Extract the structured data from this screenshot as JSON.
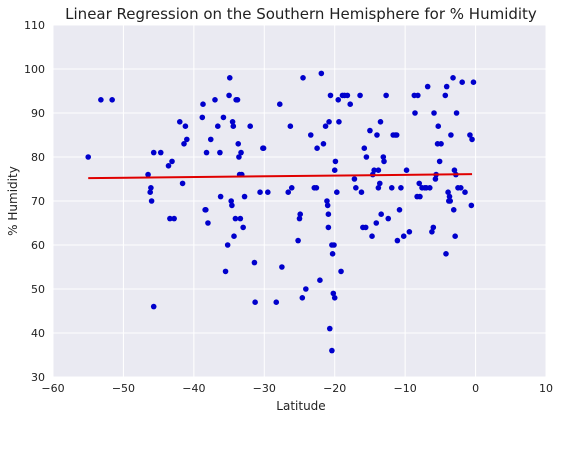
{
  "chart_data": {
    "type": "scatter",
    "title": "Linear Regression on the Southern Hemisphere for % Humidity",
    "xlabel": "Latitude",
    "ylabel": "% Humidity",
    "xlim": [
      -60,
      10
    ],
    "ylim": [
      30,
      110
    ],
    "xticks": [
      "−60",
      "−50",
      "−40",
      "−30",
      "−20",
      "−10",
      "0",
      "10"
    ],
    "yticks": [
      "30",
      "40",
      "50",
      "60",
      "70",
      "80",
      "90",
      "100",
      "110"
    ],
    "grid": true,
    "colors": {
      "background": "#eaeaf2",
      "grid": "#ffffff",
      "points": "#0000cc",
      "line": "#e00000"
    },
    "regression": {
      "x": [
        -55,
        -0.5
      ],
      "y": [
        75.2,
        76.1
      ]
    },
    "points": [
      [
        -55,
        80
      ],
      [
        -53.2,
        93
      ],
      [
        -51.6,
        93
      ],
      [
        -46.5,
        76
      ],
      [
        -46.2,
        72
      ],
      [
        -46.1,
        73
      ],
      [
        -46,
        70
      ],
      [
        -45.7,
        81
      ],
      [
        -45.7,
        46
      ],
      [
        -44.7,
        81
      ],
      [
        -43.6,
        78
      ],
      [
        -43.4,
        66
      ],
      [
        -43.1,
        79
      ],
      [
        -42.8,
        66
      ],
      [
        -42,
        88
      ],
      [
        -41.6,
        74
      ],
      [
        -41.4,
        83
      ],
      [
        -41.2,
        87
      ],
      [
        -41,
        84
      ],
      [
        -38.8,
        89
      ],
      [
        -38.7,
        92
      ],
      [
        -38.4,
        68
      ],
      [
        -38.3,
        68
      ],
      [
        -38.2,
        81
      ],
      [
        -38,
        65
      ],
      [
        -37.6,
        84
      ],
      [
        -37,
        93
      ],
      [
        -36.6,
        87
      ],
      [
        -36.3,
        81
      ],
      [
        -36.2,
        71
      ],
      [
        -35.8,
        89
      ],
      [
        -35.5,
        54
      ],
      [
        -35.2,
        60
      ],
      [
        -35,
        94
      ],
      [
        -34.9,
        98
      ],
      [
        -34.7,
        70
      ],
      [
        -34.6,
        69
      ],
      [
        -34.5,
        88
      ],
      [
        -34.4,
        87
      ],
      [
        -34.3,
        62
      ],
      [
        -34.1,
        66
      ],
      [
        -34,
        93
      ],
      [
        -33.8,
        93
      ],
      [
        -33.7,
        83
      ],
      [
        -33.6,
        80
      ],
      [
        -33.5,
        76
      ],
      [
        -33.4,
        66
      ],
      [
        -33.3,
        81
      ],
      [
        -33.2,
        76
      ],
      [
        -33,
        64
      ],
      [
        -32.8,
        71
      ],
      [
        -32,
        87
      ],
      [
        -31.4,
        56
      ],
      [
        -31.3,
        47
      ],
      [
        -30.6,
        72
      ],
      [
        -30.2,
        82
      ],
      [
        -30.1,
        82
      ],
      [
        -29.5,
        72
      ],
      [
        -28.3,
        47
      ],
      [
        -27.8,
        92
      ],
      [
        -27.5,
        55
      ],
      [
        -26.6,
        72
      ],
      [
        -26.3,
        87
      ],
      [
        -26.1,
        73
      ],
      [
        -25.2,
        61
      ],
      [
        -25,
        66
      ],
      [
        -24.9,
        67
      ],
      [
        -24.6,
        48
      ],
      [
        -24.5,
        98
      ],
      [
        -24.1,
        50
      ],
      [
        -23.4,
        85
      ],
      [
        -22.9,
        73
      ],
      [
        -22.6,
        73
      ],
      [
        -22.5,
        82
      ],
      [
        -22.1,
        52
      ],
      [
        -21.9,
        99
      ],
      [
        -21.6,
        83
      ],
      [
        -21.3,
        87
      ],
      [
        -21.1,
        70
      ],
      [
        -21,
        69
      ],
      [
        -20.9,
        67
      ],
      [
        -20.9,
        64
      ],
      [
        -20.8,
        88
      ],
      [
        -20.7,
        41
      ],
      [
        -20.6,
        94
      ],
      [
        -20.4,
        36
      ],
      [
        -20.4,
        60
      ],
      [
        -20.3,
        58
      ],
      [
        -20.2,
        49
      ],
      [
        -20.1,
        60
      ],
      [
        -20,
        48
      ],
      [
        -20,
        77
      ],
      [
        -19.9,
        79
      ],
      [
        -19.7,
        72
      ],
      [
        -19.5,
        93
      ],
      [
        -19.4,
        88
      ],
      [
        -19.1,
        54
      ],
      [
        -18.9,
        94
      ],
      [
        -18.6,
        94
      ],
      [
        -18.2,
        94
      ],
      [
        -17.8,
        92
      ],
      [
        -17.2,
        75
      ],
      [
        -17,
        73
      ],
      [
        -16.4,
        94
      ],
      [
        -16.2,
        72
      ],
      [
        -16,
        64
      ],
      [
        -15.8,
        82
      ],
      [
        -15.6,
        64
      ],
      [
        -15.5,
        80
      ],
      [
        -15,
        86
      ],
      [
        -14.7,
        62
      ],
      [
        -14.6,
        76
      ],
      [
        -14.4,
        77
      ],
      [
        -14.1,
        65
      ],
      [
        -14,
        85
      ],
      [
        -13.8,
        77
      ],
      [
        -13.8,
        73
      ],
      [
        -13.6,
        74
      ],
      [
        -13.5,
        88
      ],
      [
        -13.4,
        67
      ],
      [
        -13.1,
        80
      ],
      [
        -13,
        79
      ],
      [
        -12.7,
        94
      ],
      [
        -12.4,
        66
      ],
      [
        -11.9,
        73
      ],
      [
        -11.7,
        85
      ],
      [
        -11.4,
        85
      ],
      [
        -11.2,
        85
      ],
      [
        -11.1,
        61
      ],
      [
        -10.8,
        68
      ],
      [
        -10.6,
        73
      ],
      [
        -10.2,
        62
      ],
      [
        -9.8,
        77
      ],
      [
        -9.4,
        63
      ],
      [
        -8.7,
        94
      ],
      [
        -8.6,
        90
      ],
      [
        -8.3,
        71
      ],
      [
        -8.2,
        94
      ],
      [
        -8,
        74
      ],
      [
        -7.9,
        71
      ],
      [
        -7.6,
        73
      ],
      [
        -7.2,
        73
      ],
      [
        -7,
        73
      ],
      [
        -6.8,
        96
      ],
      [
        -6.5,
        73
      ],
      [
        -6.2,
        63
      ],
      [
        -6,
        64
      ],
      [
        -5.9,
        90
      ],
      [
        -5.7,
        75
      ],
      [
        -5.6,
        76
      ],
      [
        -5.4,
        83
      ],
      [
        -5.3,
        87
      ],
      [
        -5.1,
        79
      ],
      [
        -4.9,
        83
      ],
      [
        -4.3,
        94
      ],
      [
        -4.2,
        58
      ],
      [
        -4.1,
        96
      ],
      [
        -3.9,
        72
      ],
      [
        -3.8,
        70
      ],
      [
        -3.7,
        71
      ],
      [
        -3.6,
        70
      ],
      [
        -3.5,
        85
      ],
      [
        -3.2,
        98
      ],
      [
        -3.1,
        68
      ],
      [
        -3,
        77
      ],
      [
        -2.9,
        62
      ],
      [
        -2.8,
        76
      ],
      [
        -2.7,
        90
      ],
      [
        -2.5,
        73
      ],
      [
        -2.1,
        73
      ],
      [
        -1.9,
        97
      ],
      [
        -1.5,
        72
      ],
      [
        -0.8,
        85
      ],
      [
        -0.6,
        69
      ],
      [
        -0.5,
        84
      ],
      [
        -0.3,
        97
      ]
    ]
  }
}
